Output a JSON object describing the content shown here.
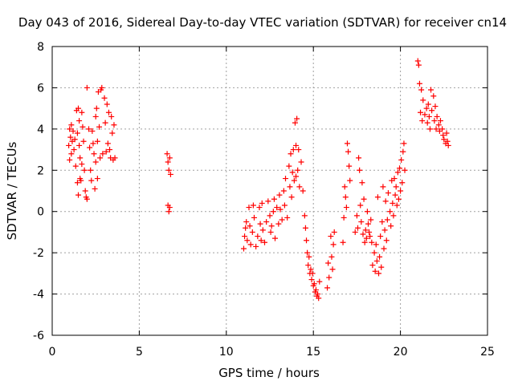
{
  "chart_data": {
    "type": "scatter",
    "title": "Day 043 of 2016, Sidereal Day-to-day VTEC variation (SDTVAR) for receiver cn14",
    "xlabel": "GPS time / hours",
    "ylabel": "SDTVAR / TECUs",
    "xlim": [
      0,
      25
    ],
    "ylim": [
      -6,
      8
    ],
    "x_ticks": [
      0,
      5,
      10,
      15,
      20,
      25
    ],
    "y_ticks": [
      -6,
      -4,
      -2,
      0,
      2,
      4,
      6,
      8
    ],
    "grid": true,
    "marker": "+",
    "color": "#ff0000",
    "series": [
      {
        "name": "SDTVAR",
        "points": [
          [
            0.95,
            3.2
          ],
          [
            1.0,
            4.0
          ],
          [
            1.0,
            2.5
          ],
          [
            1.05,
            3.6
          ],
          [
            1.1,
            4.2
          ],
          [
            1.1,
            2.8
          ],
          [
            1.15,
            3.4
          ],
          [
            1.2,
            3.9
          ],
          [
            1.25,
            3.0
          ],
          [
            1.3,
            3.5
          ],
          [
            1.35,
            2.2
          ],
          [
            1.4,
            4.9
          ],
          [
            1.45,
            3.8
          ],
          [
            1.45,
            1.4
          ],
          [
            1.5,
            0.8
          ],
          [
            1.5,
            5.0
          ],
          [
            1.55,
            4.4
          ],
          [
            1.55,
            3.2
          ],
          [
            1.6,
            2.6
          ],
          [
            1.6,
            1.6
          ],
          [
            1.65,
            1.5
          ],
          [
            1.7,
            4.8
          ],
          [
            1.7,
            2.3
          ],
          [
            1.75,
            4.1
          ],
          [
            1.8,
            3.4
          ],
          [
            1.85,
            2.0
          ],
          [
            1.9,
            1.0
          ],
          [
            1.95,
            0.7
          ],
          [
            2.0,
            6.0
          ],
          [
            2.0,
            0.6
          ],
          [
            2.1,
            4.0
          ],
          [
            2.15,
            3.1
          ],
          [
            2.2,
            2.0
          ],
          [
            2.25,
            1.5
          ],
          [
            2.3,
            3.9
          ],
          [
            2.35,
            3.3
          ],
          [
            2.4,
            2.8
          ],
          [
            2.45,
            1.1
          ],
          [
            2.5,
            4.6
          ],
          [
            2.5,
            2.4
          ],
          [
            2.55,
            5.0
          ],
          [
            2.6,
            3.4
          ],
          [
            2.6,
            1.6
          ],
          [
            2.65,
            5.8
          ],
          [
            2.7,
            4.1
          ],
          [
            2.75,
            2.6
          ],
          [
            2.8,
            5.9
          ],
          [
            2.85,
            6.0
          ],
          [
            2.9,
            2.8
          ],
          [
            3.0,
            5.5
          ],
          [
            3.05,
            4.3
          ],
          [
            3.1,
            2.9
          ],
          [
            3.15,
            5.2
          ],
          [
            3.2,
            3.3
          ],
          [
            3.25,
            4.8
          ],
          [
            3.3,
            3.0
          ],
          [
            3.35,
            2.6
          ],
          [
            3.4,
            4.6
          ],
          [
            3.45,
            3.8
          ],
          [
            3.5,
            2.5
          ],
          [
            3.55,
            4.2
          ],
          [
            3.6,
            2.6
          ],
          [
            6.6,
            2.8
          ],
          [
            6.65,
            2.4
          ],
          [
            6.65,
            0.3
          ],
          [
            6.7,
            2.0
          ],
          [
            6.7,
            0.0
          ],
          [
            6.75,
            2.6
          ],
          [
            6.75,
            0.2
          ],
          [
            6.8,
            1.8
          ],
          [
            11.0,
            -1.8
          ],
          [
            11.05,
            -1.2
          ],
          [
            11.1,
            -0.8
          ],
          [
            11.15,
            -0.5
          ],
          [
            11.2,
            -1.4
          ],
          [
            11.3,
            0.2
          ],
          [
            11.35,
            -0.7
          ],
          [
            11.4,
            -1.6
          ],
          [
            11.5,
            -1.0
          ],
          [
            11.55,
            0.3
          ],
          [
            11.6,
            -0.3
          ],
          [
            11.7,
            -1.7
          ],
          [
            11.8,
            -1.2
          ],
          [
            11.9,
            0.2
          ],
          [
            11.95,
            -0.6
          ],
          [
            12.0,
            -1.4
          ],
          [
            12.05,
            0.4
          ],
          [
            12.1,
            -0.9
          ],
          [
            12.2,
            -1.5
          ],
          [
            12.3,
            -0.5
          ],
          [
            12.4,
            0.5
          ],
          [
            12.5,
            -0.2
          ],
          [
            12.55,
            -1.0
          ],
          [
            12.6,
            -0.7
          ],
          [
            12.7,
            0.0
          ],
          [
            12.75,
            0.6
          ],
          [
            12.8,
            -1.3
          ],
          [
            12.9,
            0.2
          ],
          [
            13.0,
            -0.6
          ],
          [
            13.05,
            0.8
          ],
          [
            13.1,
            0.1
          ],
          [
            13.2,
            -0.4
          ],
          [
            13.3,
            1.0
          ],
          [
            13.35,
            0.3
          ],
          [
            13.4,
            1.6
          ],
          [
            13.5,
            -0.3
          ],
          [
            13.6,
            2.2
          ],
          [
            13.65,
            1.2
          ],
          [
            13.7,
            2.8
          ],
          [
            13.75,
            0.7
          ],
          [
            13.8,
            1.9
          ],
          [
            13.85,
            3.0
          ],
          [
            13.9,
            1.5
          ],
          [
            13.95,
            4.3
          ],
          [
            14.0,
            3.2
          ],
          [
            14.0,
            1.7
          ],
          [
            14.05,
            4.5
          ],
          [
            14.1,
            2.0
          ],
          [
            14.15,
            3.0
          ],
          [
            14.2,
            1.2
          ],
          [
            14.3,
            2.4
          ],
          [
            14.4,
            1.0
          ],
          [
            14.5,
            -0.2
          ],
          [
            14.55,
            -0.8
          ],
          [
            14.6,
            -1.4
          ],
          [
            14.65,
            -2.0
          ],
          [
            14.7,
            -2.6
          ],
          [
            14.75,
            -2.2
          ],
          [
            14.8,
            -3.0
          ],
          [
            14.85,
            -2.8
          ],
          [
            14.9,
            -3.3
          ],
          [
            14.95,
            -3.0
          ],
          [
            15.0,
            -3.6
          ],
          [
            15.05,
            -3.5
          ],
          [
            15.1,
            -3.9
          ],
          [
            15.15,
            -3.8
          ],
          [
            15.2,
            -4.1
          ],
          [
            15.25,
            -4.0
          ],
          [
            15.3,
            -4.2
          ],
          [
            15.35,
            -3.4
          ],
          [
            15.8,
            -3.7
          ],
          [
            15.85,
            -2.5
          ],
          [
            15.9,
            -3.2
          ],
          [
            16.0,
            -1.2
          ],
          [
            16.05,
            -2.2
          ],
          [
            16.1,
            -2.8
          ],
          [
            16.15,
            -1.6
          ],
          [
            16.2,
            -1.0
          ],
          [
            16.7,
            -1.5
          ],
          [
            16.75,
            -0.3
          ],
          [
            16.8,
            1.2
          ],
          [
            16.85,
            0.7
          ],
          [
            16.9,
            0.2
          ],
          [
            16.95,
            3.3
          ],
          [
            17.0,
            2.9
          ],
          [
            17.05,
            2.2
          ],
          [
            17.1,
            1.5
          ],
          [
            17.4,
            -1.0
          ],
          [
            17.5,
            -0.2
          ],
          [
            17.55,
            -0.8
          ],
          [
            17.6,
            2.6
          ],
          [
            17.65,
            2.0
          ],
          [
            17.7,
            0.3
          ],
          [
            17.75,
            -0.5
          ],
          [
            17.8,
            1.4
          ],
          [
            17.85,
            -1.1
          ],
          [
            17.9,
            0.6
          ],
          [
            17.95,
            -1.5
          ],
          [
            18.0,
            -0.9
          ],
          [
            18.05,
            -1.3
          ],
          [
            18.1,
            0.0
          ],
          [
            18.15,
            -0.6
          ],
          [
            18.2,
            -1.0
          ],
          [
            18.25,
            -1.2
          ],
          [
            18.3,
            -0.4
          ],
          [
            18.35,
            -1.5
          ],
          [
            18.4,
            -2.6
          ],
          [
            18.5,
            -2.0
          ],
          [
            18.55,
            -2.9
          ],
          [
            18.6,
            -1.6
          ],
          [
            18.65,
            -2.4
          ],
          [
            18.7,
            0.7
          ],
          [
            18.75,
            -3.0
          ],
          [
            18.8,
            -2.2
          ],
          [
            18.85,
            -1.2
          ],
          [
            18.9,
            -2.7
          ],
          [
            18.95,
            -0.5
          ],
          [
            19.0,
            1.2
          ],
          [
            19.05,
            -1.8
          ],
          [
            19.1,
            -0.9
          ],
          [
            19.15,
            0.5
          ],
          [
            19.2,
            -1.4
          ],
          [
            19.25,
            -0.4
          ],
          [
            19.3,
            0.9
          ],
          [
            19.4,
            0.0
          ],
          [
            19.45,
            -0.7
          ],
          [
            19.5,
            1.5
          ],
          [
            19.55,
            0.4
          ],
          [
            19.6,
            -0.2
          ],
          [
            19.65,
            1.6
          ],
          [
            19.7,
            0.8
          ],
          [
            19.75,
            1.2
          ],
          [
            19.8,
            0.3
          ],
          [
            19.85,
            1.9
          ],
          [
            19.9,
            0.6
          ],
          [
            19.95,
            2.1
          ],
          [
            20.0,
            1.0
          ],
          [
            20.05,
            2.5
          ],
          [
            20.1,
            1.4
          ],
          [
            20.15,
            2.9
          ],
          [
            20.2,
            3.3
          ],
          [
            20.25,
            2.0
          ],
          [
            21.0,
            7.3
          ],
          [
            21.05,
            7.1
          ],
          [
            21.1,
            6.2
          ],
          [
            21.15,
            4.8
          ],
          [
            21.2,
            5.9
          ],
          [
            21.25,
            4.4
          ],
          [
            21.3,
            5.4
          ],
          [
            21.4,
            4.7
          ],
          [
            21.5,
            5.0
          ],
          [
            21.55,
            4.3
          ],
          [
            21.6,
            5.2
          ],
          [
            21.65,
            4.6
          ],
          [
            21.7,
            4.0
          ],
          [
            21.75,
            5.9
          ],
          [
            21.8,
            4.9
          ],
          [
            21.9,
            5.6
          ],
          [
            21.95,
            4.4
          ],
          [
            22.0,
            5.1
          ],
          [
            22.05,
            4.0
          ],
          [
            22.1,
            4.6
          ],
          [
            22.2,
            4.2
          ],
          [
            22.25,
            3.9
          ],
          [
            22.3,
            4.4
          ],
          [
            22.4,
            4.0
          ],
          [
            22.45,
            3.7
          ],
          [
            22.5,
            3.5
          ],
          [
            22.6,
            3.3
          ],
          [
            22.65,
            3.8
          ],
          [
            22.7,
            3.4
          ],
          [
            22.75,
            3.2
          ]
        ]
      }
    ]
  }
}
